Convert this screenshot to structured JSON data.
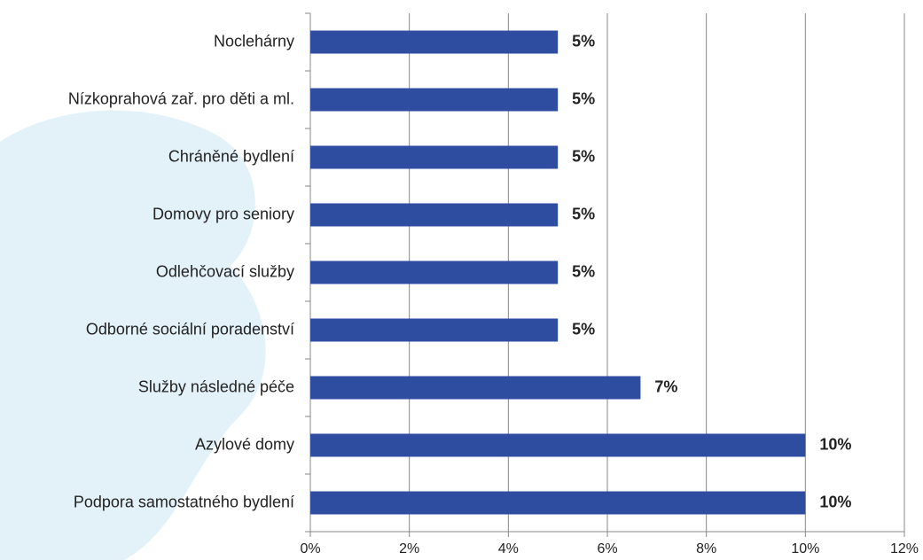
{
  "chart_data": {
    "type": "bar",
    "orientation": "horizontal",
    "categories": [
      "Noclehárny",
      "Nízkoprahová zař. pro děti a ml.",
      "Chráněné bydlení",
      "Domovy pro seniory",
      "Odlehčovací služby",
      "Odborné sociální poradenství",
      "Služby následné péče",
      "Azylové domy",
      "Podpora samostatného bydlení"
    ],
    "values": [
      5,
      5,
      5,
      5,
      5,
      5,
      6.67,
      10,
      10
    ],
    "value_labels": [
      "5%",
      "5%",
      "5%",
      "5%",
      "5%",
      "5%",
      "7%",
      "10%",
      "10%"
    ],
    "color": "#2e4da0",
    "xlim": [
      0,
      12
    ],
    "xticks": [
      {
        "value": 0,
        "label": "0%"
      },
      {
        "value": 2,
        "label": "2%"
      },
      {
        "value": 4,
        "label": "4%"
      },
      {
        "value": 6,
        "label": "6%"
      },
      {
        "value": 8,
        "label": "8%"
      },
      {
        "value": 10,
        "label": "10%"
      },
      {
        "value": 12,
        "label": "12%"
      }
    ],
    "grid": true
  }
}
